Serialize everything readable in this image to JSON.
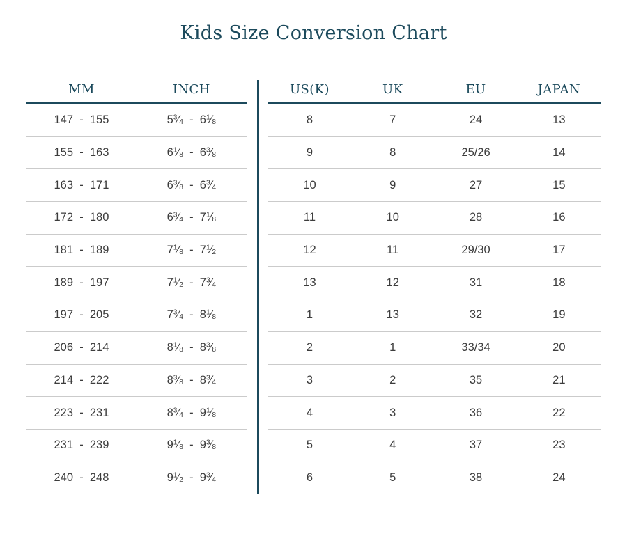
{
  "title": "Kids Size Conversion Chart",
  "colors": {
    "accent": "#1c4a5c",
    "body_text": "#3c3c3c",
    "row_divider": "#cbcbcb",
    "background": "#ffffff"
  },
  "chart_data": {
    "type": "table",
    "title": "Kids Size Conversion Chart",
    "columns": [
      "MM",
      "INCH",
      "US(K)",
      "UK",
      "EU",
      "JAPAN"
    ],
    "layout": "two table panels separated by a vertical accent rule between INCH and US(K)",
    "rows": [
      [
        "147 - 155",
        "5 3/4 - 6 1/8",
        "8",
        "7",
        "24",
        "13"
      ],
      [
        "155 - 163",
        "6 1/8 - 6 3/8",
        "9",
        "8",
        "25/26",
        "14"
      ],
      [
        "163 - 171",
        "6 3/8 - 6 3/4",
        "10",
        "9",
        "27",
        "15"
      ],
      [
        "172 - 180",
        "6 3/4 - 7 1/8",
        "11",
        "10",
        "28",
        "16"
      ],
      [
        "181 - 189",
        "7 1/8 - 7 1/2",
        "12",
        "11",
        "29/30",
        "17"
      ],
      [
        "189 - 197",
        "7 1/2 - 7 3/4",
        "13",
        "12",
        "31",
        "18"
      ],
      [
        "197 - 205",
        "7 3/4 - 8 1/8",
        "1",
        "13",
        "32",
        "19"
      ],
      [
        "206 - 214",
        "8 1/8 - 8 3/8",
        "2",
        "1",
        "33/34",
        "20"
      ],
      [
        "214 - 222",
        "8 3/8 - 8 3/4",
        "3",
        "2",
        "35",
        "21"
      ],
      [
        "223 - 231",
        "8 3/4 - 9 1/8",
        "4",
        "3",
        "36",
        "22"
      ],
      [
        "231 - 239",
        "9 1/8 - 9 3/8",
        "5",
        "4",
        "37",
        "23"
      ],
      [
        "240 - 248",
        "9 1/2 - 9 3/4",
        "6",
        "5",
        "38",
        "24"
      ]
    ]
  }
}
